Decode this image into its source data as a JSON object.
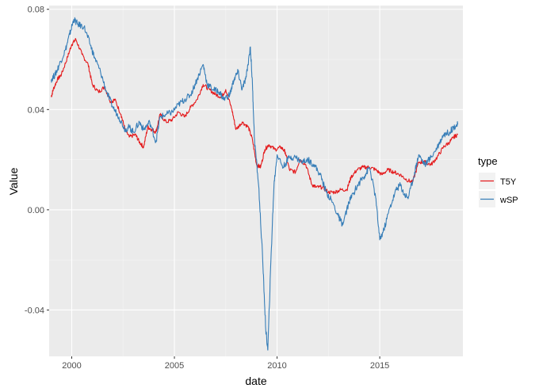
{
  "chart_data": {
    "type": "line",
    "title": "",
    "xlabel": "date",
    "ylabel": "Value",
    "x_ticks": [
      "2000",
      "2005",
      "2010",
      "2015"
    ],
    "y_ticks": [
      "-0.04",
      "0.00",
      "0.04",
      "0.08"
    ],
    "xlim": [
      1998.9,
      2019.05
    ],
    "ylim": [
      -0.0585,
      0.0815
    ],
    "grid": true,
    "legend": {
      "title": "type",
      "position": "right"
    },
    "series": [
      {
        "name": "T5Y",
        "color": "#e41a1c",
        "points": [
          [
            1999.0,
            0.045
          ],
          [
            1999.1,
            0.048
          ],
          [
            1999.3,
            0.052
          ],
          [
            1999.5,
            0.054
          ],
          [
            1999.8,
            0.061
          ],
          [
            2000.0,
            0.066
          ],
          [
            2000.2,
            0.068
          ],
          [
            2000.5,
            0.062
          ],
          [
            2000.8,
            0.058
          ],
          [
            2001.0,
            0.05
          ],
          [
            2001.3,
            0.047
          ],
          [
            2001.6,
            0.049
          ],
          [
            2001.9,
            0.043
          ],
          [
            2002.1,
            0.044
          ],
          [
            2002.4,
            0.038
          ],
          [
            2002.6,
            0.032
          ],
          [
            2002.8,
            0.029
          ],
          [
            2003.1,
            0.03
          ],
          [
            2003.3,
            0.027
          ],
          [
            2003.5,
            0.025
          ],
          [
            2003.7,
            0.033
          ],
          [
            2003.9,
            0.032
          ],
          [
            2004.1,
            0.031
          ],
          [
            2004.3,
            0.038
          ],
          [
            2004.6,
            0.035
          ],
          [
            2004.9,
            0.036
          ],
          [
            2005.2,
            0.039
          ],
          [
            2005.5,
            0.037
          ],
          [
            2005.8,
            0.041
          ],
          [
            2006.1,
            0.044
          ],
          [
            2006.4,
            0.05
          ],
          [
            2006.7,
            0.048
          ],
          [
            2007.0,
            0.046
          ],
          [
            2007.3,
            0.045
          ],
          [
            2007.5,
            0.048
          ],
          [
            2007.8,
            0.04
          ],
          [
            2008.0,
            0.032
          ],
          [
            2008.3,
            0.035
          ],
          [
            2008.6,
            0.033
          ],
          [
            2008.8,
            0.028
          ],
          [
            2009.0,
            0.018
          ],
          [
            2009.2,
            0.017
          ],
          [
            2009.4,
            0.024
          ],
          [
            2009.6,
            0.026
          ],
          [
            2009.9,
            0.024
          ],
          [
            2010.2,
            0.025
          ],
          [
            2010.4,
            0.023
          ],
          [
            2010.6,
            0.016
          ],
          [
            2010.9,
            0.015
          ],
          [
            2011.1,
            0.02
          ],
          [
            2011.4,
            0.018
          ],
          [
            2011.7,
            0.01
          ],
          [
            2011.9,
            0.009
          ],
          [
            2012.2,
            0.009
          ],
          [
            2012.5,
            0.007
          ],
          [
            2012.8,
            0.007
          ],
          [
            2013.1,
            0.008
          ],
          [
            2013.4,
            0.008
          ],
          [
            2013.6,
            0.013
          ],
          [
            2013.9,
            0.016
          ],
          [
            2014.2,
            0.017
          ],
          [
            2014.5,
            0.017
          ],
          [
            2014.8,
            0.016
          ],
          [
            2015.1,
            0.014
          ],
          [
            2015.4,
            0.016
          ],
          [
            2015.7,
            0.015
          ],
          [
            2016.0,
            0.014
          ],
          [
            2016.3,
            0.012
          ],
          [
            2016.6,
            0.011
          ],
          [
            2016.9,
            0.019
          ],
          [
            2017.2,
            0.019
          ],
          [
            2017.5,
            0.018
          ],
          [
            2017.8,
            0.021
          ],
          [
            2018.1,
            0.025
          ],
          [
            2018.4,
            0.027
          ],
          [
            2018.6,
            0.029
          ],
          [
            2018.8,
            0.03
          ]
        ]
      },
      {
        "name": "wSP",
        "color": "#377eb8",
        "points": [
          [
            1999.0,
            0.052
          ],
          [
            1999.2,
            0.054
          ],
          [
            1999.4,
            0.058
          ],
          [
            1999.7,
            0.064
          ],
          [
            1999.9,
            0.07
          ],
          [
            2000.1,
            0.076
          ],
          [
            2000.3,
            0.074
          ],
          [
            2000.6,
            0.073
          ],
          [
            2000.9,
            0.066
          ],
          [
            2001.1,
            0.061
          ],
          [
            2001.4,
            0.055
          ],
          [
            2001.7,
            0.047
          ],
          [
            2002.0,
            0.041
          ],
          [
            2002.3,
            0.037
          ],
          [
            2002.6,
            0.032
          ],
          [
            2002.8,
            0.033
          ],
          [
            2003.0,
            0.031
          ],
          [
            2003.3,
            0.035
          ],
          [
            2003.5,
            0.032
          ],
          [
            2003.8,
            0.035
          ],
          [
            2004.1,
            0.027
          ],
          [
            2004.3,
            0.037
          ],
          [
            2004.6,
            0.038
          ],
          [
            2004.9,
            0.039
          ],
          [
            2005.2,
            0.042
          ],
          [
            2005.5,
            0.044
          ],
          [
            2005.8,
            0.046
          ],
          [
            2006.1,
            0.052
          ],
          [
            2006.4,
            0.058
          ],
          [
            2006.6,
            0.05
          ],
          [
            2006.9,
            0.048
          ],
          [
            2007.2,
            0.047
          ],
          [
            2007.4,
            0.044
          ],
          [
            2007.7,
            0.046
          ],
          [
            2007.9,
            0.052
          ],
          [
            2008.1,
            0.055
          ],
          [
            2008.3,
            0.048
          ],
          [
            2008.5,
            0.053
          ],
          [
            2008.7,
            0.065
          ],
          [
            2008.8,
            0.05
          ],
          [
            2008.9,
            0.028
          ],
          [
            2009.1,
            0.01
          ],
          [
            2009.3,
            -0.02
          ],
          [
            2009.45,
            -0.048
          ],
          [
            2009.55,
            -0.056
          ],
          [
            2009.7,
            -0.02
          ],
          [
            2009.85,
            0.01
          ],
          [
            2010.0,
            0.022
          ],
          [
            2010.3,
            0.017
          ],
          [
            2010.6,
            0.021
          ],
          [
            2010.9,
            0.021
          ],
          [
            2011.2,
            0.019
          ],
          [
            2011.5,
            0.02
          ],
          [
            2011.8,
            0.018
          ],
          [
            2012.1,
            0.014
          ],
          [
            2012.4,
            0.007
          ],
          [
            2012.7,
            0.003
          ],
          [
            2013.0,
            -0.003
          ],
          [
            2013.2,
            -0.006
          ],
          [
            2013.5,
            0.003
          ],
          [
            2013.8,
            0.008
          ],
          [
            2014.1,
            0.012
          ],
          [
            2014.3,
            0.014
          ],
          [
            2014.5,
            0.017
          ],
          [
            2014.8,
            0.005
          ],
          [
            2015.0,
            -0.012
          ],
          [
            2015.2,
            -0.008
          ],
          [
            2015.5,
            0.001
          ],
          [
            2015.8,
            0.008
          ],
          [
            2016.0,
            0.01
          ],
          [
            2016.2,
            0.006
          ],
          [
            2016.4,
            0.005
          ],
          [
            2016.7,
            0.015
          ],
          [
            2016.9,
            0.022
          ],
          [
            2017.2,
            0.018
          ],
          [
            2017.5,
            0.021
          ],
          [
            2017.8,
            0.025
          ],
          [
            2018.1,
            0.03
          ],
          [
            2018.4,
            0.031
          ],
          [
            2018.6,
            0.033
          ],
          [
            2018.8,
            0.034
          ]
        ]
      }
    ]
  }
}
